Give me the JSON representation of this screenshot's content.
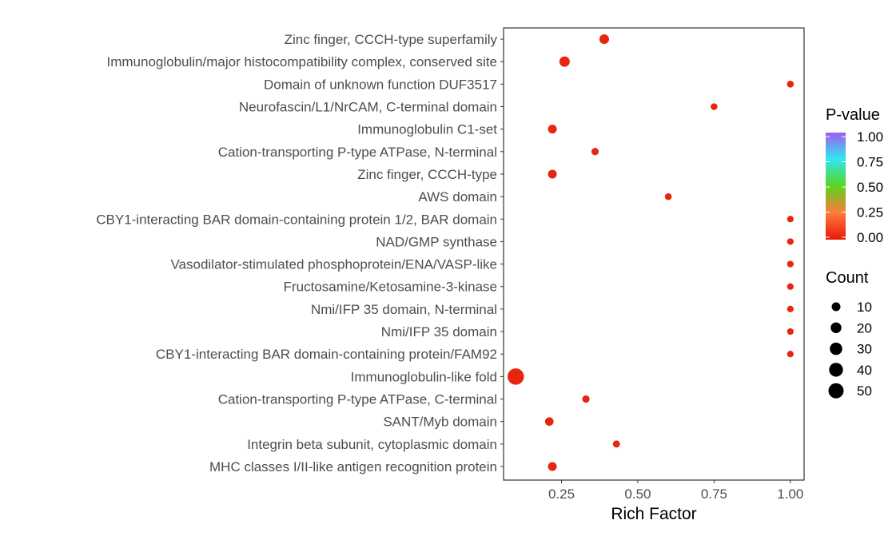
{
  "chart_data": {
    "type": "scatter",
    "xlabel": "Rich Factor",
    "ylabel": "",
    "xlim": [
      0.06,
      1.045
    ],
    "xticks": [
      0.25,
      0.5,
      0.75,
      1.0
    ],
    "xtick_labels": [
      "0.25",
      "0.50",
      "0.75",
      "1.00"
    ],
    "grid": false,
    "categories": [
      "Zinc finger, CCCH-type superfamily",
      "Immunoglobulin/major histocompatibility complex, conserved site",
      "Domain of unknown function DUF3517",
      "Neurofascin/L1/NrCAM, C-terminal domain",
      "Immunoglobulin C1-set",
      "Cation-transporting P-type ATPase, N-terminal",
      "Zinc finger, CCCH-type",
      "AWS domain",
      "CBY1-interacting BAR domain-containing protein 1/2, BAR domain",
      "NAD/GMP synthase",
      "Vasodilator-stimulated phosphoprotein/ENA/VASP-like",
      "Fructosamine/Ketosamine-3-kinase",
      "Nmi/IFP 35 domain, N-terminal",
      "Nmi/IFP 35 domain",
      "CBY1-interacting BAR domain-containing protein/FAM92",
      "Immunoglobulin-like fold",
      "Cation-transporting P-type ATPase, C-terminal",
      "SANT/Myb domain",
      "Integrin beta subunit, cytoplasmic domain",
      "MHC classes I/II-like antigen recognition protein"
    ],
    "rich_factor": [
      0.39,
      0.26,
      1.0,
      0.75,
      0.22,
      0.36,
      0.22,
      0.6,
      1.0,
      1.0,
      1.0,
      1.0,
      1.0,
      1.0,
      1.0,
      0.1,
      0.33,
      0.21,
      0.43,
      0.22
    ],
    "count": [
      14,
      18,
      2,
      2,
      10,
      4,
      10,
      2,
      1,
      1,
      1,
      1,
      1,
      1,
      1,
      60,
      4,
      9,
      3,
      10
    ],
    "p_value": [
      0,
      0,
      0,
      0,
      0,
      0,
      0,
      0,
      0,
      0,
      0,
      0,
      0,
      0,
      0,
      0,
      0,
      0,
      0,
      0
    ],
    "color_legend": {
      "title": "P-value",
      "ticks": [
        "1.00",
        "0.75",
        "0.50",
        "0.25",
        "0.00"
      ],
      "gradient": [
        "#a05cf0",
        "#2fe8f0",
        "#5ad41e",
        "#ff7a3c",
        "#e81808"
      ],
      "placement": "right"
    },
    "size_legend": {
      "title": "Count",
      "values": [
        "10",
        "20",
        "30",
        "40",
        "50"
      ],
      "placement": "right"
    },
    "point_color": "#e8250f"
  }
}
